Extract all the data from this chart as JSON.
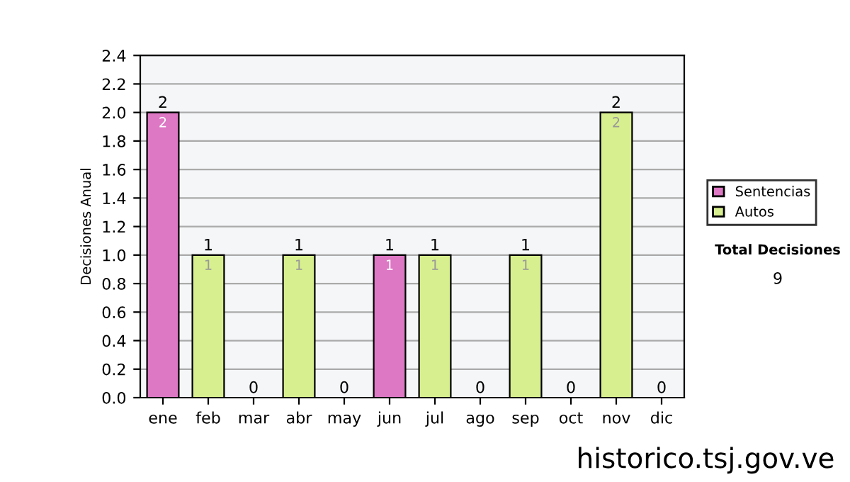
{
  "chart_data": {
    "type": "bar",
    "stacked": true,
    "ylabel": "Decisiones Anual",
    "categories": [
      "ene",
      "feb",
      "mar",
      "abr",
      "may",
      "jun",
      "jul",
      "ago",
      "sep",
      "oct",
      "nov",
      "dic"
    ],
    "series": [
      {
        "name": "Sentencias",
        "color": "#dd78c4",
        "values": [
          2,
          0,
          0,
          0,
          0,
          1,
          0,
          0,
          0,
          0,
          0,
          0
        ],
        "value_labels": [
          "2",
          null,
          null,
          null,
          null,
          "1",
          null,
          null,
          null,
          null,
          null,
          null
        ]
      },
      {
        "name": "Autos",
        "color": "#d7ef8e",
        "values": [
          0,
          1,
          0,
          1,
          0,
          0,
          1,
          0,
          1,
          0,
          2,
          0
        ],
        "value_labels": [
          null,
          "1",
          null,
          "1",
          null,
          null,
          "1",
          null,
          "1",
          null,
          "2",
          null
        ]
      }
    ],
    "totals": [
      "2",
      "1",
      "0",
      "1",
      "0",
      "1",
      "1",
      "0",
      "1",
      "0",
      "2",
      "0"
    ],
    "ylim": [
      0,
      2.4
    ],
    "yticks": [
      {
        "value": 0,
        "label": "0.0"
      },
      {
        "value": 0.2,
        "label": "0.2"
      },
      {
        "value": 0.4,
        "label": "0.4"
      },
      {
        "value": 0.6,
        "label": "0.6"
      },
      {
        "value": 0.8,
        "label": "0.8"
      },
      {
        "value": 1.0,
        "label": "1.0"
      },
      {
        "value": 1.2,
        "label": "1.2"
      },
      {
        "value": 1.4,
        "label": "1.4"
      },
      {
        "value": 1.6,
        "label": "1.6"
      },
      {
        "value": 1.8,
        "label": "1.8"
      },
      {
        "value": 2.0,
        "label": "2.0"
      },
      {
        "value": 2.2,
        "label": "2.2"
      },
      {
        "value": 2.4,
        "label": "2.4"
      }
    ],
    "grid": "y",
    "legend": "right",
    "annotations": [
      "Total Decisiones",
      "9",
      "historico.tsj.gov.ve"
    ]
  }
}
